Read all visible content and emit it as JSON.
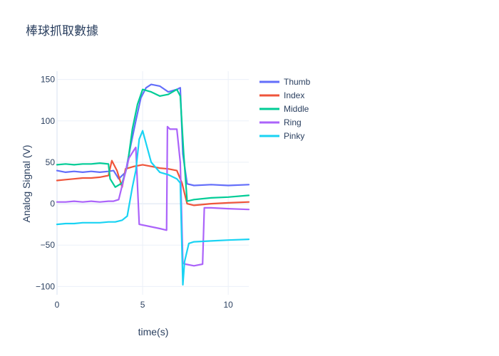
{
  "chart_data": {
    "type": "line",
    "title": "棒球抓取數據",
    "xlabel": "time(s)",
    "ylabel": "Analog Signal (V)",
    "xlim": [
      0,
      11.2
    ],
    "ylim": [
      -110,
      160
    ],
    "xticks": [
      0,
      5,
      10
    ],
    "yticks": [
      -100,
      -50,
      0,
      50,
      100,
      150
    ],
    "ytick_labels": [
      "−100",
      "−50",
      "0",
      "50",
      "100",
      "150"
    ],
    "legend_position": "top-right",
    "series": [
      {
        "name": "Thumb",
        "color": "#636efa",
        "x": [
          0,
          0.5,
          1,
          1.5,
          2,
          2.5,
          3,
          3.3,
          3.6,
          4,
          4.3,
          4.6,
          4.9,
          5.2,
          5.5,
          6,
          6.5,
          7,
          7.2,
          7.35,
          7.6,
          8,
          9,
          10,
          11.2
        ],
        "y": [
          40,
          38,
          39,
          38,
          39,
          38,
          39,
          40,
          30,
          38,
          70,
          100,
          128,
          140,
          144,
          142,
          135,
          138,
          140,
          60,
          24,
          22,
          23,
          22,
          23
        ]
      },
      {
        "name": "Index",
        "color": "#ef553b",
        "x": [
          0,
          0.5,
          1,
          1.5,
          2,
          2.5,
          3,
          3.2,
          3.5,
          3.8,
          4,
          4.5,
          5,
          5.5,
          6,
          6.5,
          7,
          7.3,
          7.6,
          8,
          9,
          10,
          11.2
        ],
        "y": [
          28,
          29,
          30,
          31,
          31,
          32,
          34,
          52,
          40,
          20,
          42,
          45,
          47,
          45,
          43,
          42,
          40,
          25,
          0,
          -2,
          0,
          1,
          2
        ]
      },
      {
        "name": "Middle",
        "color": "#00cc96",
        "x": [
          0,
          0.5,
          1,
          1.5,
          2,
          2.5,
          3,
          3.1,
          3.4,
          3.8,
          4.1,
          4.4,
          4.7,
          5,
          5.5,
          6,
          6.5,
          7,
          7.2,
          7.4,
          7.6,
          8,
          9,
          10,
          11.2
        ],
        "y": [
          47,
          48,
          47,
          48,
          48,
          49,
          48,
          30,
          20,
          25,
          45,
          90,
          120,
          138,
          135,
          130,
          132,
          138,
          130,
          60,
          3,
          5,
          7,
          8,
          10
        ]
      },
      {
        "name": "Ring",
        "color": "#ab63fa",
        "x": [
          0,
          0.5,
          1,
          1.5,
          2,
          2.5,
          3,
          3.3,
          3.6,
          3.9,
          4.2,
          4.5,
          4.6,
          4.8,
          5.3,
          6,
          6.4,
          6.45,
          6.6,
          7,
          7.2,
          7.35,
          7.5,
          8,
          8.5,
          8.6,
          9,
          10,
          11.2
        ],
        "y": [
          2,
          2,
          3,
          2,
          3,
          2,
          3,
          3,
          5,
          30,
          55,
          65,
          68,
          -25,
          -27,
          -30,
          -32,
          93,
          90,
          90,
          50,
          -72,
          -73,
          -75,
          -73,
          -5,
          -5,
          -6,
          -7
        ]
      },
      {
        "name": "Pinky",
        "color": "#19d3f3",
        "x": [
          0,
          0.5,
          1,
          1.5,
          2,
          2.5,
          3,
          3.4,
          3.8,
          4.1,
          4.4,
          4.6,
          4.8,
          5,
          5.5,
          6,
          6.5,
          7,
          7.2,
          7.35,
          7.45,
          7.7,
          8,
          9,
          10,
          11.2
        ],
        "y": [
          -25,
          -24,
          -24,
          -23,
          -23,
          -23,
          -22,
          -22,
          -20,
          -15,
          20,
          40,
          78,
          88,
          50,
          38,
          35,
          30,
          25,
          -98,
          -70,
          -48,
          -46,
          -45,
          -44,
          -43
        ]
      }
    ]
  }
}
